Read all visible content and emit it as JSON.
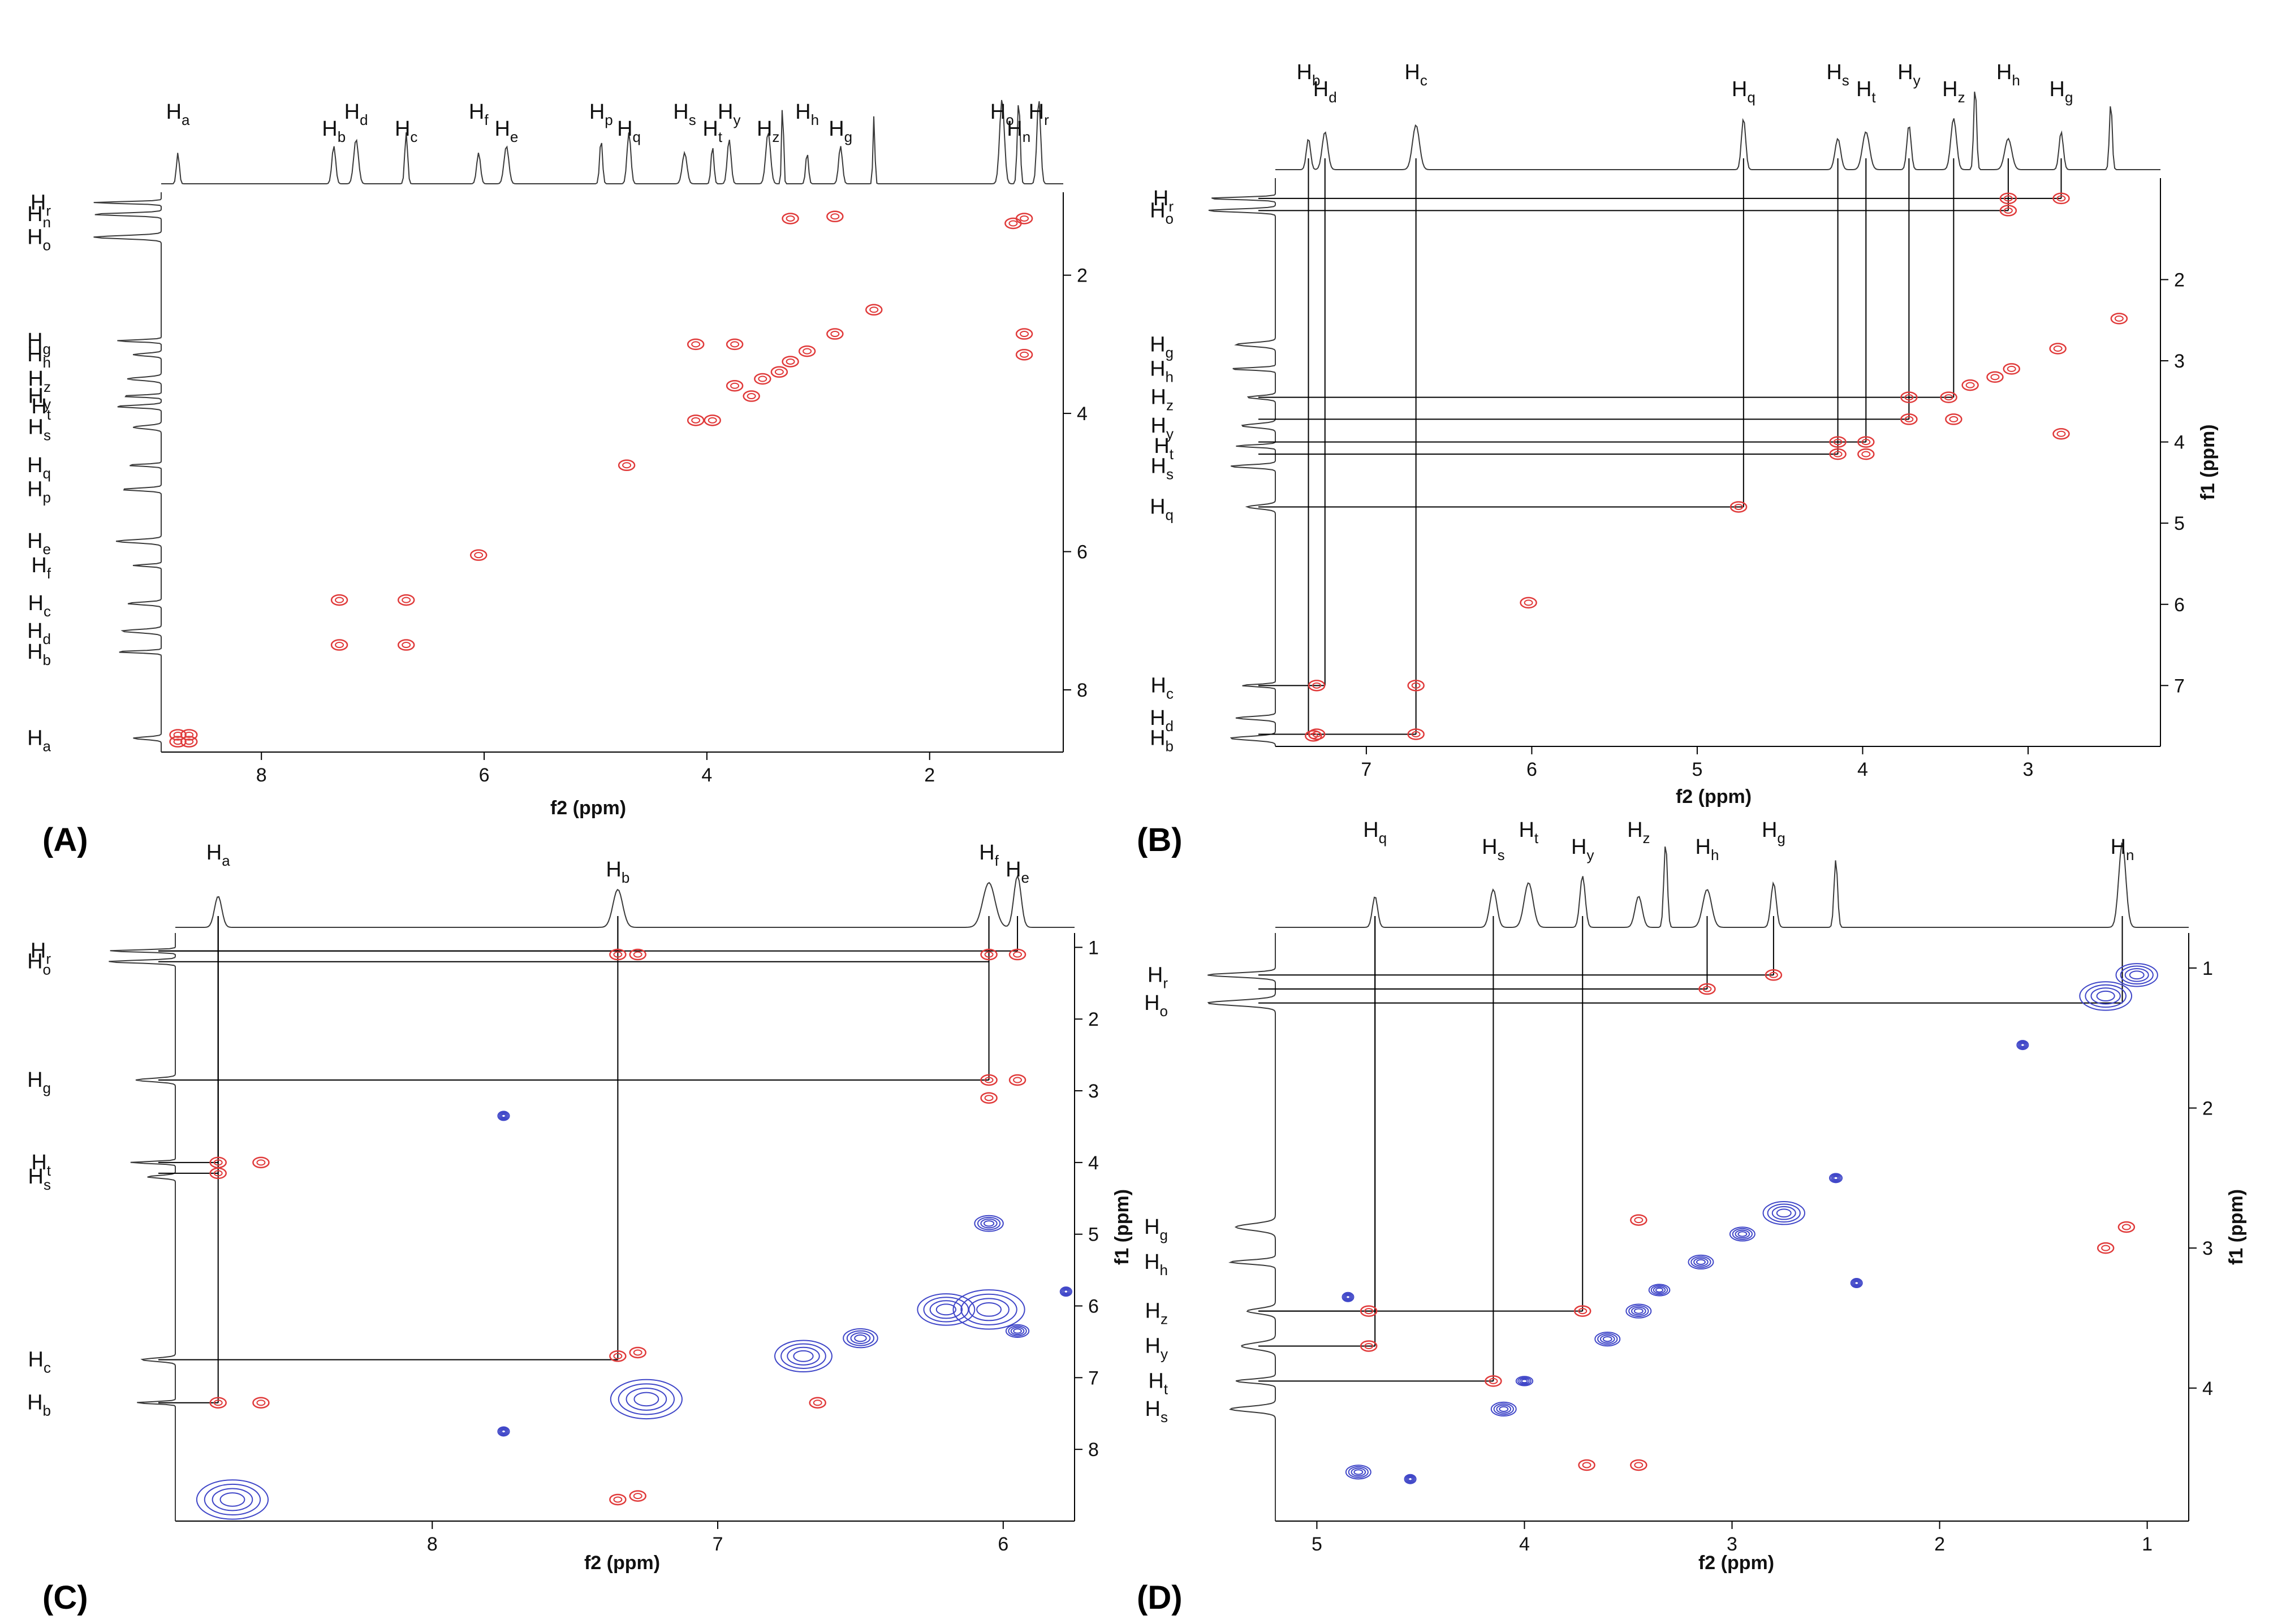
{
  "colors": {
    "positive": "#e03a3a",
    "negative": "#3f46c8",
    "trace": "#3a3a3a",
    "guide": "#000000"
  },
  "chart_data": [
    {
      "panel": "A",
      "type": "2D NMR (homonuclear contour)",
      "xlabel": "f2 (ppm)",
      "ylabel": "",
      "xlim": [
        8.9,
        0.8
      ],
      "ylim": [
        0.8,
        8.9
      ],
      "xticks": [
        "8",
        "6",
        "4",
        "2"
      ],
      "yticks": [
        "2",
        "4",
        "6",
        "8"
      ],
      "top_labels": [
        {
          "b": "H",
          "s": "a",
          "x": 8.75
        },
        {
          "b": "H",
          "s": "b",
          "x": 7.35
        },
        {
          "b": "H",
          "s": "d",
          "x": 7.15
        },
        {
          "b": "H",
          "s": "c",
          "x": 6.7
        },
        {
          "b": "H",
          "s": "f",
          "x": 6.05
        },
        {
          "b": "H",
          "s": "e",
          "x": 5.8
        },
        {
          "b": "H",
          "s": "p",
          "x": 4.95
        },
        {
          "b": "H",
          "s": "q",
          "x": 4.7
        },
        {
          "b": "H",
          "s": "s",
          "x": 4.2
        },
        {
          "b": "H",
          "s": "t",
          "x": 3.95
        },
        {
          "b": "H",
          "s": "y",
          "x": 3.8
        },
        {
          "b": "H",
          "s": "z",
          "x": 3.45
        },
        {
          "b": "H",
          "s": "h",
          "x": 3.1
        },
        {
          "b": "H",
          "s": "g",
          "x": 2.8
        },
        {
          "b": "H",
          "s": "o",
          "x": 1.35
        },
        {
          "b": "H",
          "s": "n",
          "x": 1.2
        },
        {
          "b": "H",
          "s": "r",
          "x": 1.02
        }
      ],
      "side_labels": [
        {
          "b": "H",
          "s": "r",
          "y": 0.95
        },
        {
          "b": "H",
          "s": "n",
          "y": 1.12
        },
        {
          "b": "H",
          "s": "o",
          "y": 1.45
        },
        {
          "b": "H",
          "s": "g",
          "y": 2.95
        },
        {
          "b": "H",
          "s": "h",
          "y": 3.15
        },
        {
          "b": "H",
          "s": "z",
          "y": 3.5
        },
        {
          "b": "H",
          "s": "y",
          "y": 3.75
        },
        {
          "b": "H",
          "s": "t",
          "y": 3.9
        },
        {
          "b": "H",
          "s": "s",
          "y": 4.2
        },
        {
          "b": "H",
          "s": "q",
          "y": 4.75
        },
        {
          "b": "H",
          "s": "p",
          "y": 5.1
        },
        {
          "b": "H",
          "s": "e",
          "y": 5.85
        },
        {
          "b": "H",
          "s": "f",
          "y": 6.2
        },
        {
          "b": "H",
          "s": "c",
          "y": 6.75
        },
        {
          "b": "H",
          "s": "d",
          "y": 7.15
        },
        {
          "b": "H",
          "s": "b",
          "y": 7.45
        },
        {
          "b": "H",
          "s": "a",
          "y": 8.7
        }
      ],
      "peaks": [
        {
          "x": 8.75,
          "y": 8.75,
          "s": "p"
        },
        {
          "x": 8.65,
          "y": 8.75,
          "s": "p"
        },
        {
          "x": 8.75,
          "y": 8.65,
          "s": "p"
        },
        {
          "x": 8.65,
          "y": 8.65,
          "s": "p"
        },
        {
          "x": 7.3,
          "y": 6.7,
          "s": "p"
        },
        {
          "x": 6.7,
          "y": 6.7,
          "s": "p"
        },
        {
          "x": 7.3,
          "y": 7.35,
          "s": "p"
        },
        {
          "x": 6.7,
          "y": 7.35,
          "s": "p"
        },
        {
          "x": 6.05,
          "y": 6.05,
          "s": "p"
        },
        {
          "x": 4.72,
          "y": 4.75,
          "s": "p"
        },
        {
          "x": 4.1,
          "y": 4.1,
          "s": "p"
        },
        {
          "x": 3.95,
          "y": 4.1,
          "s": "p"
        },
        {
          "x": 3.5,
          "y": 3.5,
          "s": "p"
        },
        {
          "x": 3.35,
          "y": 3.4,
          "s": "p"
        },
        {
          "x": 3.25,
          "y": 3.25,
          "s": "p"
        },
        {
          "x": 3.1,
          "y": 3.1,
          "s": "p"
        },
        {
          "x": 2.85,
          "y": 2.85,
          "s": "p"
        },
        {
          "x": 2.5,
          "y": 2.5,
          "s": "p"
        },
        {
          "x": 1.25,
          "y": 1.25,
          "s": "p"
        },
        {
          "x": 1.15,
          "y": 1.18,
          "s": "p"
        },
        {
          "x": 3.25,
          "y": 1.18,
          "s": "p"
        },
        {
          "x": 2.85,
          "y": 1.15,
          "s": "p"
        },
        {
          "x": 1.15,
          "y": 2.85,
          "s": "p"
        },
        {
          "x": 1.15,
          "y": 3.15,
          "s": "p"
        },
        {
          "x": 3.75,
          "y": 3.6,
          "s": "p"
        },
        {
          "x": 3.6,
          "y": 3.75,
          "s": "p"
        },
        {
          "x": 4.1,
          "y": 3.0,
          "s": "p"
        },
        {
          "x": 3.75,
          "y": 3.0,
          "s": "p"
        }
      ]
    },
    {
      "panel": "B",
      "type": "2D NMR (homonuclear contour)",
      "xlabel": "f2 (ppm)",
      "ylabel": "f1 (ppm)",
      "xlim": [
        7.55,
        2.2
      ],
      "ylim": [
        0.75,
        7.75
      ],
      "xticks": [
        "7",
        "6",
        "5",
        "4",
        "3"
      ],
      "yticks": [
        "2",
        "3",
        "4",
        "5",
        "6",
        "7"
      ],
      "top_labels": [
        {
          "b": "H",
          "s": "b",
          "x": 7.35
        },
        {
          "b": "H",
          "s": "d",
          "x": 7.25
        },
        {
          "b": "H",
          "s": "c",
          "x": 6.7
        },
        {
          "b": "H",
          "s": "q",
          "x": 4.72
        },
        {
          "b": "H",
          "s": "s",
          "x": 4.15
        },
        {
          "b": "H",
          "s": "t",
          "x": 3.98
        },
        {
          "b": "H",
          "s": "y",
          "x": 3.72
        },
        {
          "b": "H",
          "s": "z",
          "x": 3.45
        },
        {
          "b": "H",
          "s": "h",
          "x": 3.12
        },
        {
          "b": "H",
          "s": "g",
          "x": 2.8
        }
      ],
      "side_labels": [
        {
          "b": "H",
          "s": "r",
          "y": 1.0
        },
        {
          "b": "H",
          "s": "o",
          "y": 1.15
        },
        {
          "b": "H",
          "s": "g",
          "y": 2.8
        },
        {
          "b": "H",
          "s": "h",
          "y": 3.1
        },
        {
          "b": "H",
          "s": "z",
          "y": 3.45
        },
        {
          "b": "H",
          "s": "y",
          "y": 3.8
        },
        {
          "b": "H",
          "s": "t",
          "y": 4.05
        },
        {
          "b": "H",
          "s": "s",
          "y": 4.3
        },
        {
          "b": "H",
          "s": "q",
          "y": 4.8
        },
        {
          "b": "H",
          "s": "c",
          "y": 7.0
        },
        {
          "b": "H",
          "s": "d",
          "y": 7.4
        },
        {
          "b": "H",
          "s": "b",
          "y": 7.65
        }
      ],
      "peaks": [
        {
          "x": 7.3,
          "y": 7.6,
          "s": "p"
        },
        {
          "x": 6.7,
          "y": 7.6,
          "s": "p"
        },
        {
          "x": 7.3,
          "y": 7.0,
          "s": "p"
        },
        {
          "x": 6.7,
          "y": 7.0,
          "s": "p"
        },
        {
          "x": 7.32,
          "y": 7.62,
          "s": "p"
        },
        {
          "x": 6.02,
          "y": 5.98,
          "s": "p"
        },
        {
          "x": 4.75,
          "y": 4.8,
          "s": "p"
        },
        {
          "x": 4.15,
          "y": 4.15,
          "s": "p"
        },
        {
          "x": 3.98,
          "y": 4.15,
          "s": "p"
        },
        {
          "x": 4.15,
          "y": 4.0,
          "s": "p"
        },
        {
          "x": 3.98,
          "y": 4.0,
          "s": "p"
        },
        {
          "x": 3.72,
          "y": 3.72,
          "s": "p"
        },
        {
          "x": 3.48,
          "y": 3.45,
          "s": "p"
        },
        {
          "x": 3.35,
          "y": 3.3,
          "s": "p"
        },
        {
          "x": 3.2,
          "y": 3.2,
          "s": "p"
        },
        {
          "x": 3.1,
          "y": 3.1,
          "s": "p"
        },
        {
          "x": 2.82,
          "y": 2.85,
          "s": "p"
        },
        {
          "x": 2.45,
          "y": 2.48,
          "s": "p"
        },
        {
          "x": 3.12,
          "y": 1.0,
          "s": "p"
        },
        {
          "x": 2.8,
          "y": 1.0,
          "s": "p"
        },
        {
          "x": 3.12,
          "y": 1.15,
          "s": "p"
        },
        {
          "x": 3.45,
          "y": 3.72,
          "s": "p"
        },
        {
          "x": 3.72,
          "y": 3.45,
          "s": "p"
        },
        {
          "x": 2.8,
          "y": 3.9,
          "s": "p"
        }
      ],
      "guide_lines": [
        {
          "x": 7.35,
          "y": 7.6
        },
        {
          "x": 7.25,
          "y": 7.0
        },
        {
          "x": 6.7,
          "y": 7.6
        },
        {
          "x": 4.72,
          "y": 4.8
        },
        {
          "x": 4.15,
          "y": 4.15
        },
        {
          "x": 3.98,
          "y": 4.0
        },
        {
          "x": 3.72,
          "y": 3.72
        },
        {
          "x": 3.45,
          "y": 3.45
        },
        {
          "x": 3.12,
          "y": 1.15
        },
        {
          "x": 2.8,
          "y": 1.0
        }
      ]
    },
    {
      "panel": "C",
      "type": "2D NMR (NOESY/ROESY contour)",
      "xlabel": "f2 (ppm)",
      "ylabel": "f1 (ppm)",
      "xlim": [
        8.9,
        5.75
      ],
      "ylim": [
        0.8,
        9.0
      ],
      "xticks": [
        "8",
        "7",
        "6"
      ],
      "yticks": [
        "1",
        "2",
        "3",
        "4",
        "5",
        "6",
        "7",
        "8"
      ],
      "top_labels": [
        {
          "b": "H",
          "s": "a",
          "x": 8.75
        },
        {
          "b": "H",
          "s": "b",
          "x": 7.35
        },
        {
          "b": "H",
          "s": "f",
          "x": 6.05
        },
        {
          "b": "H",
          "s": "e",
          "x": 5.95
        }
      ],
      "side_labels": [
        {
          "b": "H",
          "s": "r",
          "y": 1.05
        },
        {
          "b": "H",
          "s": "o",
          "y": 1.2
        },
        {
          "b": "H",
          "s": "g",
          "y": 2.85
        },
        {
          "b": "H",
          "s": "t",
          "y": 4.0
        },
        {
          "b": "H",
          "s": "s",
          "y": 4.2
        },
        {
          "b": "H",
          "s": "c",
          "y": 6.75
        },
        {
          "b": "H",
          "s": "b",
          "y": 7.35
        }
      ],
      "peaks": [
        {
          "x": 8.75,
          "y": 4.0,
          "s": "p"
        },
        {
          "x": 8.75,
          "y": 4.15,
          "s": "p"
        },
        {
          "x": 8.75,
          "y": 7.35,
          "s": "p"
        },
        {
          "x": 8.6,
          "y": 4.0,
          "s": "p"
        },
        {
          "x": 8.6,
          "y": 7.35,
          "s": "p"
        },
        {
          "x": 7.35,
          "y": 1.1,
          "s": "p"
        },
        {
          "x": 7.28,
          "y": 1.1,
          "s": "p"
        },
        {
          "x": 7.35,
          "y": 6.7,
          "s": "p"
        },
        {
          "x": 7.28,
          "y": 6.65,
          "s": "p"
        },
        {
          "x": 6.05,
          "y": 1.1,
          "s": "p"
        },
        {
          "x": 5.95,
          "y": 1.1,
          "s": "p"
        },
        {
          "x": 6.05,
          "y": 2.85,
          "s": "p"
        },
        {
          "x": 5.95,
          "y": 2.85,
          "s": "p"
        },
        {
          "x": 6.05,
          "y": 3.1,
          "s": "p"
        },
        {
          "x": 7.35,
          "y": 8.7,
          "s": "p"
        },
        {
          "x": 7.28,
          "y": 8.65,
          "s": "p"
        },
        {
          "x": 6.65,
          "y": 7.35,
          "s": "p"
        },
        {
          "x": 8.7,
          "y": 8.7,
          "s": "n",
          "w": 0.25
        },
        {
          "x": 7.25,
          "y": 7.3,
          "s": "n",
          "w": 0.25
        },
        {
          "x": 6.7,
          "y": 6.7,
          "s": "n",
          "w": 0.2
        },
        {
          "x": 6.5,
          "y": 6.45,
          "s": "n",
          "w": 0.12
        },
        {
          "x": 6.2,
          "y": 6.05,
          "s": "n",
          "w": 0.2
        },
        {
          "x": 6.05,
          "y": 6.05,
          "s": "n",
          "w": 0.25
        },
        {
          "x": 5.95,
          "y": 6.35,
          "s": "n",
          "w": 0.08
        },
        {
          "x": 6.05,
          "y": 4.85,
          "s": "n",
          "w": 0.1
        },
        {
          "x": 7.75,
          "y": 3.35,
          "s": "n",
          "w": 0.04
        },
        {
          "x": 7.75,
          "y": 7.75,
          "s": "n",
          "w": 0.04
        },
        {
          "x": 5.78,
          "y": 5.8,
          "s": "n",
          "w": 0.04
        }
      ],
      "guide_lines": [
        {
          "x": 8.75,
          "y": 4.0
        },
        {
          "x": 8.75,
          "y": 4.15
        },
        {
          "x": 8.75,
          "y": 7.35
        },
        {
          "x": 7.35,
          "y": 1.05
        },
        {
          "x": 7.35,
          "y": 6.75
        },
        {
          "x": 6.05,
          "y": 2.85
        },
        {
          "x": 6.05,
          "y": 1.2
        },
        {
          "x": 5.95,
          "y": 1.05
        }
      ]
    },
    {
      "panel": "D",
      "type": "2D NMR (NOESY/ROESY contour)",
      "xlabel": "f2 (ppm)",
      "ylabel": "f1 (ppm)",
      "xlim": [
        5.2,
        0.8
      ],
      "ylim": [
        0.75,
        4.95
      ],
      "xticks": [
        "5",
        "4",
        "3",
        "2",
        "1"
      ],
      "yticks": [
        "1",
        "2",
        "3",
        "4"
      ],
      "top_labels": [
        {
          "b": "H",
          "s": "q",
          "x": 4.72
        },
        {
          "b": "H",
          "s": "s",
          "x": 4.15
        },
        {
          "b": "H",
          "s": "t",
          "x": 3.98
        },
        {
          "b": "H",
          "s": "y",
          "x": 3.72
        },
        {
          "b": "H",
          "s": "z",
          "x": 3.45
        },
        {
          "b": "H",
          "s": "h",
          "x": 3.12
        },
        {
          "b": "H",
          "s": "g",
          "x": 2.8
        },
        {
          "b": "H",
          "s": "n",
          "x": 1.12
        }
      ],
      "side_labels": [
        {
          "b": "H",
          "s": "r",
          "y": 1.05
        },
        {
          "b": "H",
          "s": "o",
          "y": 1.25
        },
        {
          "b": "H",
          "s": "g",
          "y": 2.85
        },
        {
          "b": "H",
          "s": "h",
          "y": 3.1
        },
        {
          "b": "H",
          "s": "z",
          "y": 3.45
        },
        {
          "b": "H",
          "s": "y",
          "y": 3.7
        },
        {
          "b": "H",
          "s": "t",
          "y": 3.95
        },
        {
          "b": "H",
          "s": "s",
          "y": 4.15
        }
      ],
      "peaks": [
        {
          "x": 4.75,
          "y": 3.45,
          "s": "p"
        },
        {
          "x": 4.75,
          "y": 3.7,
          "s": "p"
        },
        {
          "x": 4.15,
          "y": 3.95,
          "s": "p"
        },
        {
          "x": 3.72,
          "y": 3.45,
          "s": "p"
        },
        {
          "x": 3.12,
          "y": 1.15,
          "s": "p"
        },
        {
          "x": 2.8,
          "y": 1.05,
          "s": "p"
        },
        {
          "x": 1.2,
          "y": 3.0,
          "s": "p"
        },
        {
          "x": 1.1,
          "y": 2.85,
          "s": "p"
        },
        {
          "x": 3.45,
          "y": 2.8,
          "s": "p"
        },
        {
          "x": 3.7,
          "y": 4.55,
          "s": "p"
        },
        {
          "x": 3.45,
          "y": 4.55,
          "s": "p"
        },
        {
          "x": 4.8,
          "y": 4.6,
          "s": "n",
          "w": 0.12
        },
        {
          "x": 4.0,
          "y": 3.95,
          "s": "n",
          "w": 0.08
        },
        {
          "x": 4.1,
          "y": 4.15,
          "s": "n",
          "w": 0.12
        },
        {
          "x": 3.6,
          "y": 3.65,
          "s": "n",
          "w": 0.12
        },
        {
          "x": 3.45,
          "y": 3.45,
          "s": "n",
          "w": 0.12
        },
        {
          "x": 3.35,
          "y": 3.3,
          "s": "n",
          "w": 0.1
        },
        {
          "x": 3.15,
          "y": 3.1,
          "s": "n",
          "w": 0.12
        },
        {
          "x": 2.95,
          "y": 2.9,
          "s": "n",
          "w": 0.12
        },
        {
          "x": 2.75,
          "y": 2.75,
          "s": "n",
          "w": 0.2
        },
        {
          "x": 2.5,
          "y": 2.5,
          "s": "n",
          "w": 0.06
        },
        {
          "x": 2.4,
          "y": 3.25,
          "s": "n",
          "w": 0.05
        },
        {
          "x": 1.2,
          "y": 1.2,
          "s": "n",
          "w": 0.25
        },
        {
          "x": 1.05,
          "y": 1.05,
          "s": "n",
          "w": 0.2
        },
        {
          "x": 4.85,
          "y": 3.35,
          "s": "n",
          "w": 0.04
        },
        {
          "x": 1.6,
          "y": 1.55,
          "s": "n",
          "w": 0.03
        },
        {
          "x": 4.55,
          "y": 4.65,
          "s": "n",
          "w": 0.03
        }
      ],
      "guide_lines": [
        {
          "x": 4.72,
          "y": 3.45
        },
        {
          "x": 4.72,
          "y": 3.7
        },
        {
          "x": 4.15,
          "y": 3.95
        },
        {
          "x": 3.72,
          "y": 3.45
        },
        {
          "x": 3.12,
          "y": 1.15
        },
        {
          "x": 2.8,
          "y": 1.05
        },
        {
          "x": 1.12,
          "y": 1.25
        }
      ]
    }
  ]
}
